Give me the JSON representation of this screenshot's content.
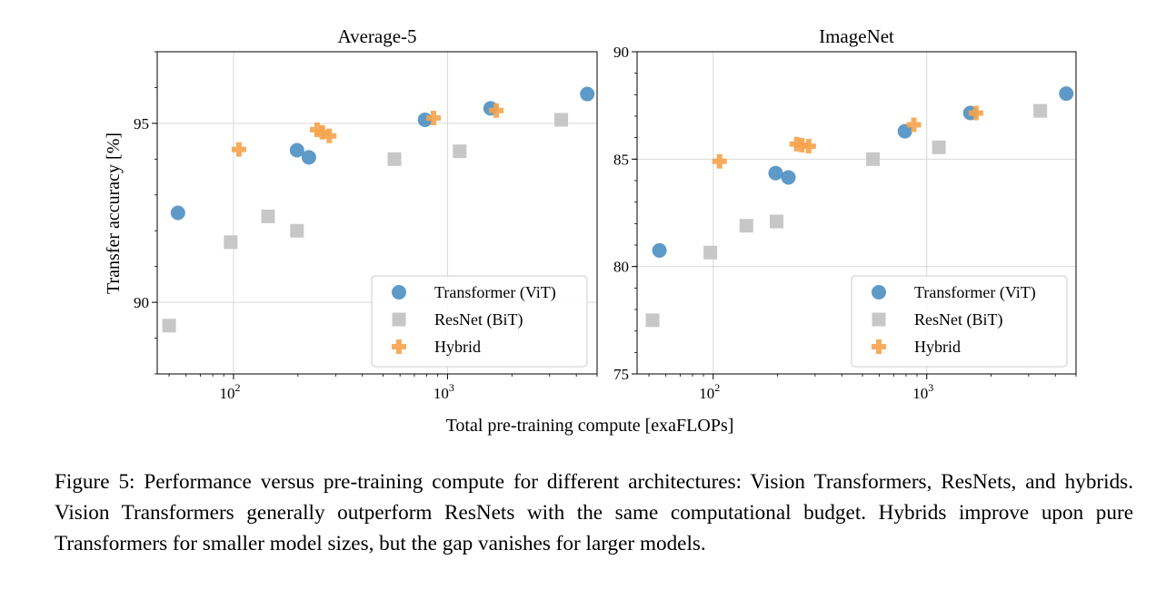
{
  "figure": {
    "xlabel": "Total pre-training compute [exaFLOPs]",
    "ylabel": "Transfer accuracy [%]"
  },
  "caption": "Figure 5: Performance versus pre-training compute for different architectures: Vision Transformers, ResNets, and hybrids. Vision Transformers generally outperform ResNets with the same computational budget. Hybrids improve upon pure Transformers for smaller model sizes, but the gap vanishes for larger models.",
  "colors": {
    "vit": "#4c8fc2",
    "resnet": "#c7c7c7",
    "hybrid": "#f5a34a",
    "grid": "#d9d9d9"
  },
  "chart_data": [
    {
      "type": "scatter",
      "title": "Average-5",
      "xscale": "log",
      "xlim": [
        44,
        5000
      ],
      "ylim": [
        88,
        97
      ],
      "x_ticks": [
        {
          "value": 100,
          "base": "10",
          "exp": "2"
        },
        {
          "value": 1000,
          "base": "10",
          "exp": "3"
        }
      ],
      "y_ticks": [
        {
          "value": 90,
          "label": "90"
        },
        {
          "value": 95,
          "label": "95"
        }
      ],
      "grid": true,
      "legend": "lower-right",
      "series": [
        {
          "name": "Transformer (ViT)",
          "marker": "circle",
          "color": "#4c8fc2",
          "points": [
            [
              55,
              92.5
            ],
            [
              198,
              94.25
            ],
            [
              225,
              94.05
            ],
            [
              785,
              95.1
            ],
            [
              1590,
              95.42
            ],
            [
              4500,
              95.82
            ]
          ]
        },
        {
          "name": "ResNet (BiT)",
          "marker": "square",
          "color": "#c7c7c7",
          "points": [
            [
              50,
              89.35
            ],
            [
              97,
              91.68
            ],
            [
              145,
              92.4
            ],
            [
              198,
              92.0
            ],
            [
              565,
              94.0
            ],
            [
              1140,
              94.22
            ],
            [
              3400,
              95.1
            ]
          ]
        },
        {
          "name": "Hybrid",
          "marker": "plus",
          "color": "#f5a34a",
          "points": [
            [
              106,
              94.27
            ],
            [
              246,
              94.82
            ],
            [
              260,
              94.75
            ],
            [
              280,
              94.65
            ],
            [
              860,
              95.15
            ],
            [
              1690,
              95.36
            ]
          ]
        }
      ]
    },
    {
      "type": "scatter",
      "title": "ImageNet",
      "xscale": "log",
      "xlim": [
        44,
        5000
      ],
      "ylim": [
        75,
        90
      ],
      "x_ticks": [
        {
          "value": 100,
          "base": "10",
          "exp": "2"
        },
        {
          "value": 1000,
          "base": "10",
          "exp": "3"
        }
      ],
      "y_ticks": [
        {
          "value": 75,
          "label": "75"
        },
        {
          "value": 80,
          "label": "80"
        },
        {
          "value": 85,
          "label": "85"
        },
        {
          "value": 90,
          "label": "90"
        }
      ],
      "grid": true,
      "legend": "lower-right",
      "series": [
        {
          "name": "Transformer (ViT)",
          "marker": "circle",
          "color": "#4c8fc2",
          "points": [
            [
              56,
              80.75
            ],
            [
              196,
              84.35
            ],
            [
              225,
              84.15
            ],
            [
              790,
              86.3
            ],
            [
              1600,
              87.15
            ],
            [
              4500,
              88.05
            ]
          ]
        },
        {
          "name": "ResNet (BiT)",
          "marker": "square",
          "color": "#c7c7c7",
          "points": [
            [
              52,
              77.5
            ],
            [
              97,
              80.65
            ],
            [
              143,
              81.9
            ],
            [
              198,
              82.1
            ],
            [
              560,
              85.0
            ],
            [
              1140,
              85.55
            ],
            [
              3400,
              87.25
            ]
          ]
        },
        {
          "name": "Hybrid",
          "marker": "plus",
          "color": "#f5a34a",
          "points": [
            [
              107,
              84.9
            ],
            [
              246,
              85.7
            ],
            [
              260,
              85.65
            ],
            [
              280,
              85.6
            ],
            [
              870,
              86.6
            ],
            [
              1700,
              87.15
            ]
          ]
        }
      ]
    }
  ]
}
